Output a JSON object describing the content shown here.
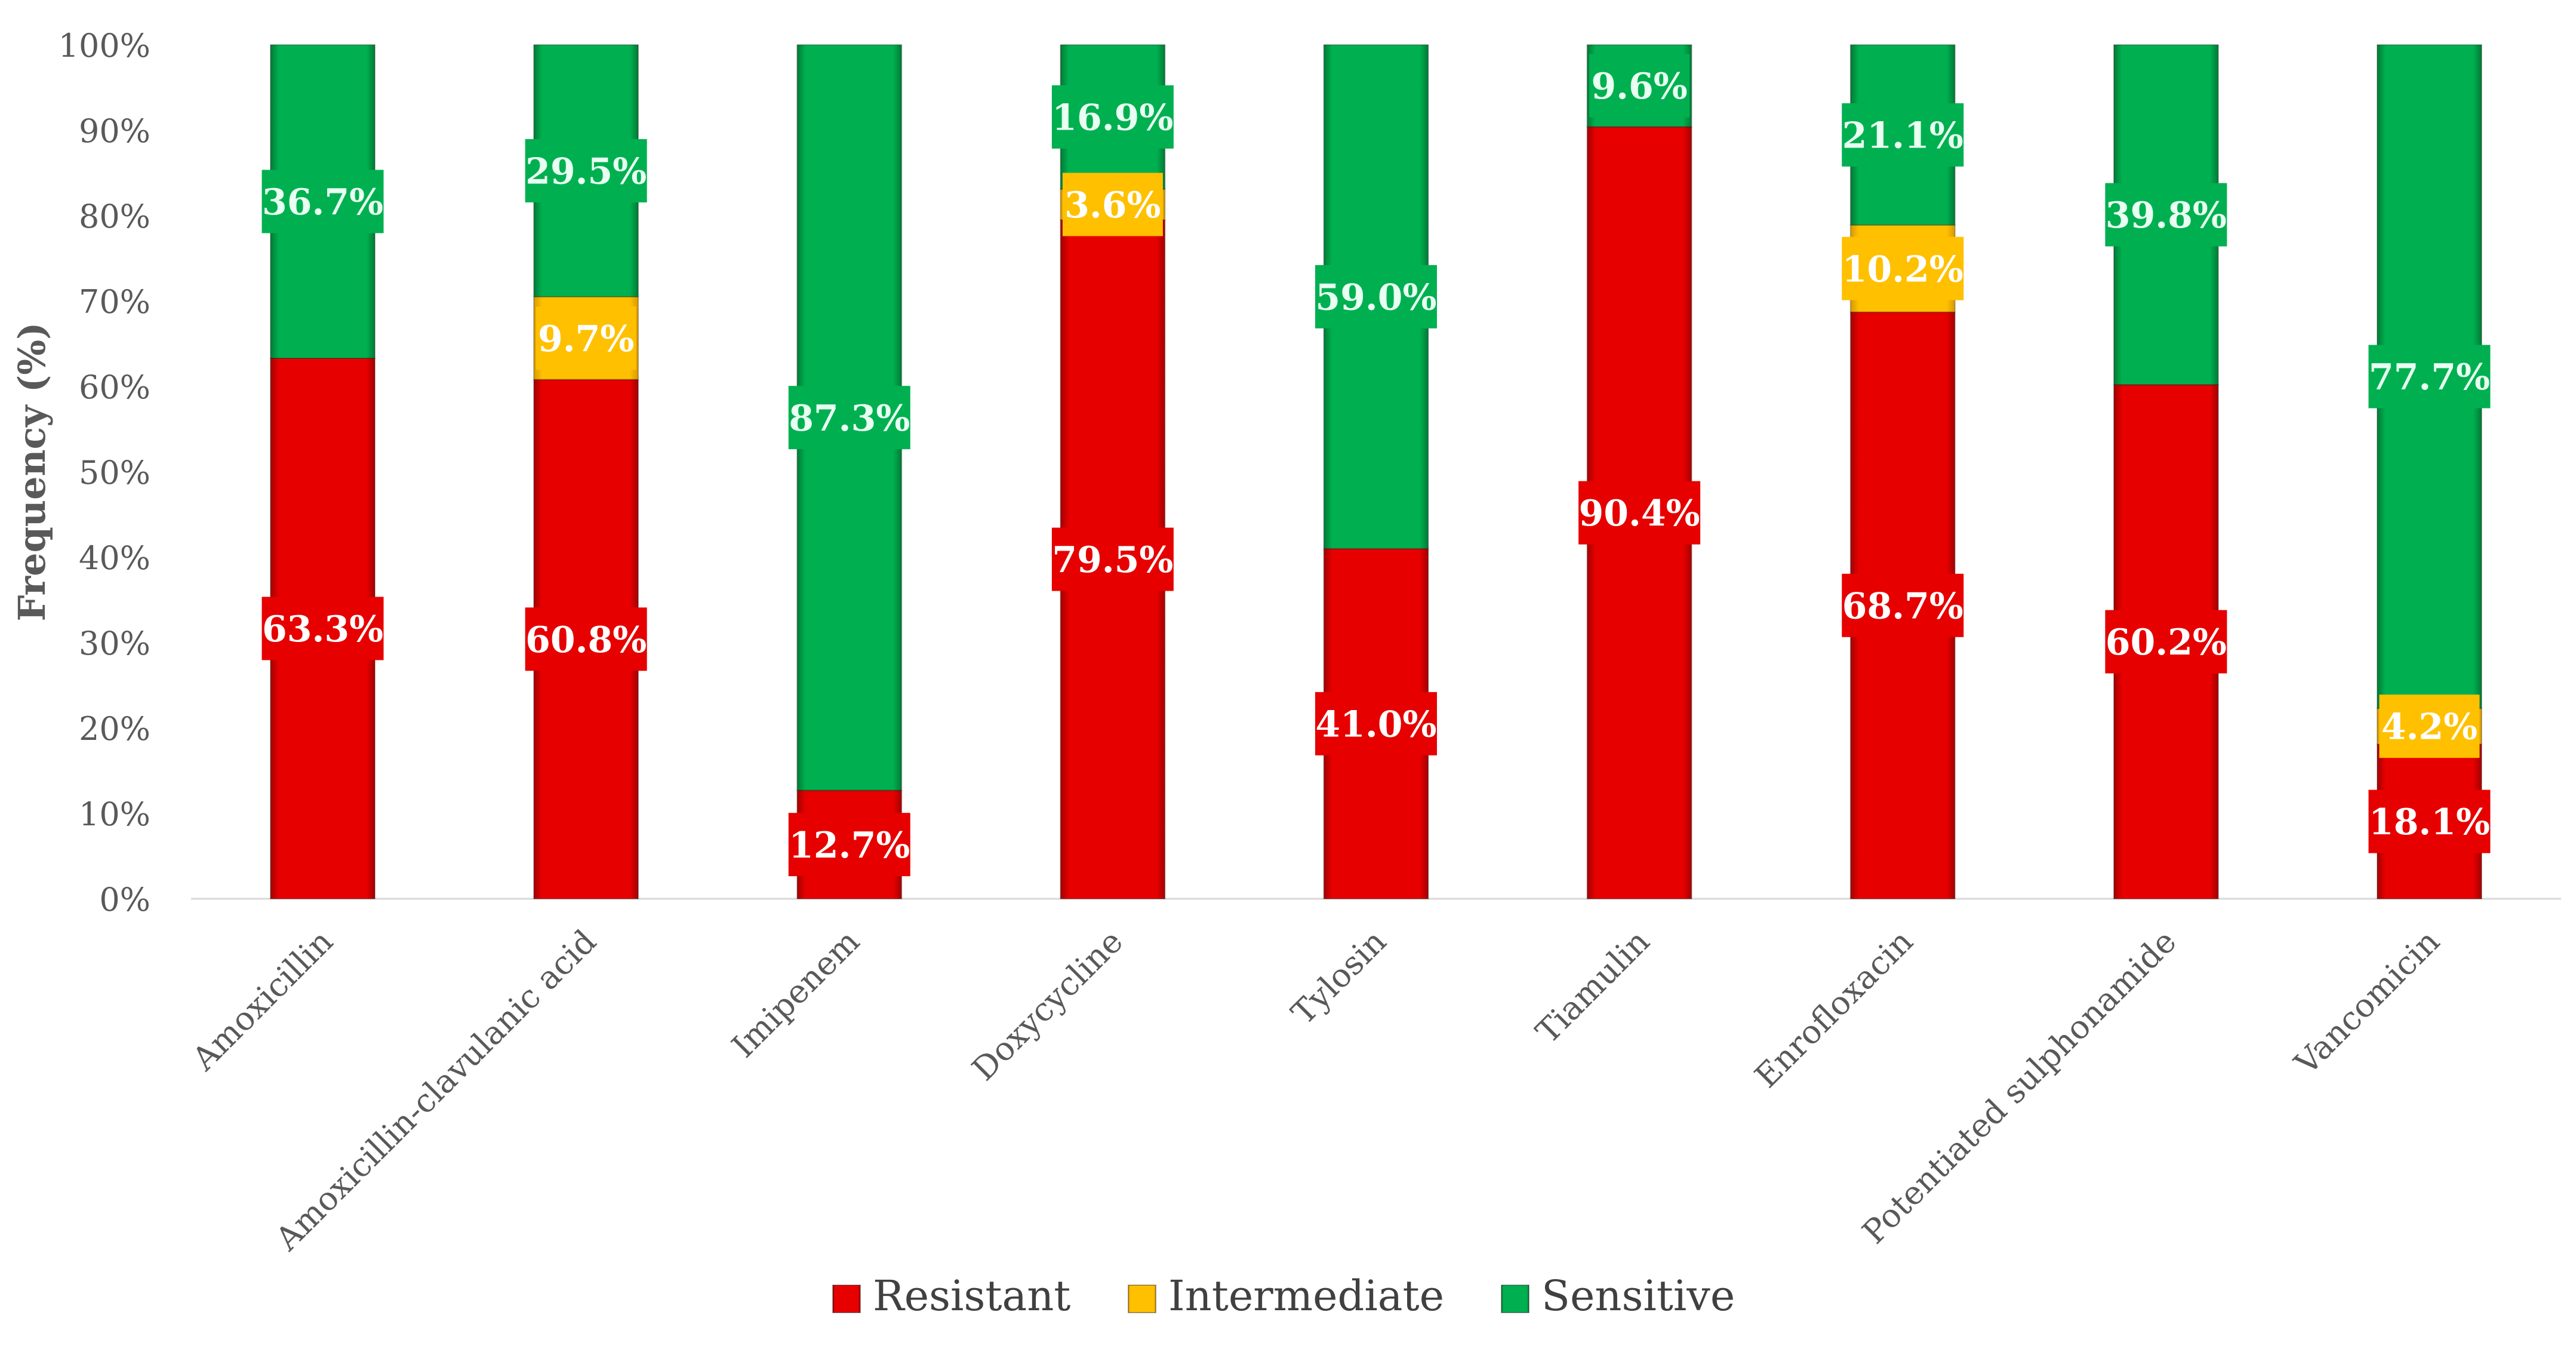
{
  "chart_data": {
    "type": "bar",
    "stacked": true,
    "title": "",
    "xlabel": "",
    "ylabel": "Frequency (%)",
    "ylim": [
      0,
      100
    ],
    "yticks": [
      0,
      10,
      20,
      30,
      40,
      50,
      60,
      70,
      80,
      90,
      100
    ],
    "ytick_labels": [
      "0%",
      "10%",
      "20%",
      "30%",
      "40%",
      "50%",
      "60%",
      "70%",
      "80%",
      "90%",
      "100%"
    ],
    "grid": false,
    "legend_position": "bottom",
    "categories": [
      "Amoxicillin",
      "Amoxicillin-clavulanic acid",
      "Imipenem",
      "Doxycycline",
      "Tylosin",
      "Tiamulin",
      "Enrofloxacin",
      "Potentiated sulphonamide",
      "Vancomicin"
    ],
    "series": [
      {
        "name": "Resistant",
        "color": "#e60000",
        "values": [
          63.3,
          60.8,
          12.7,
          79.5,
          41.0,
          90.4,
          68.7,
          60.2,
          18.1
        ],
        "labels": [
          "63.3%",
          "60.8%",
          "12.7%",
          "79.5%",
          "41.0%",
          "90.4%",
          "68.7%",
          "60.2%",
          "18.1%"
        ]
      },
      {
        "name": "Intermediate",
        "color": "#ffc000",
        "values": [
          0,
          9.7,
          0,
          3.6,
          0,
          0,
          10.2,
          0,
          4.2
        ],
        "labels": [
          "",
          "9.7%",
          "",
          "3.6%",
          "",
          "",
          "10.2%",
          "",
          "4.2%"
        ]
      },
      {
        "name": "Sensitive",
        "color": "#00b050",
        "values": [
          36.7,
          29.5,
          87.3,
          16.9,
          59.0,
          9.6,
          21.1,
          39.8,
          77.7
        ],
        "labels": [
          "36.7%",
          "29.5%",
          "87.3%",
          "16.9%",
          "59.0%",
          "9.6%",
          "21.1%",
          "39.8%",
          "77.7%"
        ]
      }
    ]
  }
}
